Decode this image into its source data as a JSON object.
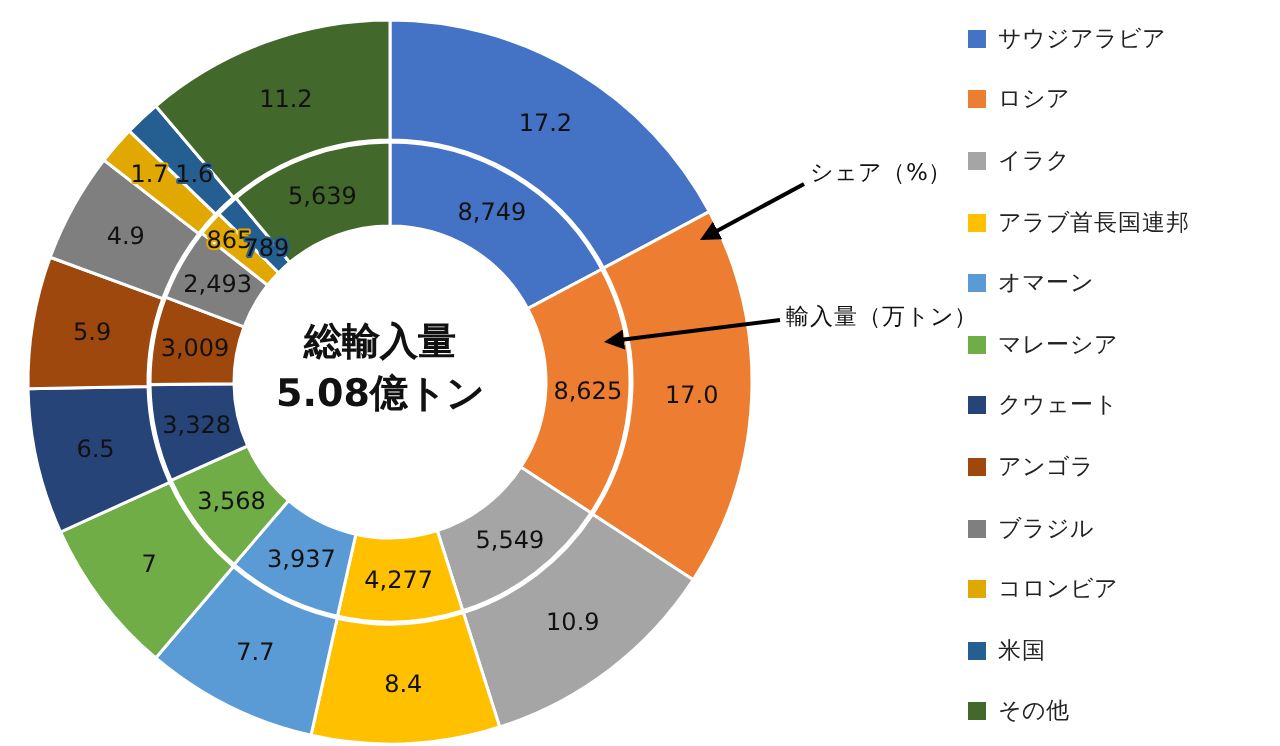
{
  "chart_data": {
    "type": "donut",
    "title": "総輸入量",
    "subtitle": "5.08億トン",
    "categories": [
      "サウジアラビア",
      "ロシア",
      "イラク",
      "アラブ首長国連邦",
      "オマーン",
      "マレーシア",
      "クウェート",
      "アンゴラ",
      "ブラジル",
      "コロンビア",
      "米国",
      "その他"
    ],
    "colors": [
      "#4472c4",
      "#ed7d31",
      "#a5a5a5",
      "#ffc000",
      "#5b9bd5",
      "#70ad47",
      "#264478",
      "#9e480e",
      "#7f7f7f",
      "#e0a800",
      "#255e91",
      "#43682b"
    ],
    "series": [
      {
        "name": "輸入量（万トン）",
        "values": [
          8749,
          8625,
          5549,
          4277,
          3937,
          3568,
          3328,
          3009,
          2493,
          865,
          789,
          5639
        ],
        "value_labels": [
          "8,749",
          "8,625",
          "5,549",
          "4,277",
          "3,937",
          "3,568",
          "3,328",
          "3,009",
          "2,493",
          "865",
          "789",
          "5,639"
        ]
      },
      {
        "name": "シェア（%）",
        "values": [
          17.2,
          17.0,
          10.9,
          8.4,
          7.7,
          7,
          6.5,
          5.9,
          4.9,
          1.7,
          1.6,
          11.2
        ],
        "value_labels": [
          "17.2",
          "17.0",
          "10.9",
          "8.4",
          "7.7",
          "7",
          "6.5",
          "5.9",
          "4.9",
          "1.7",
          "1.6",
          "11.2"
        ]
      }
    ],
    "legend": "right"
  }
}
